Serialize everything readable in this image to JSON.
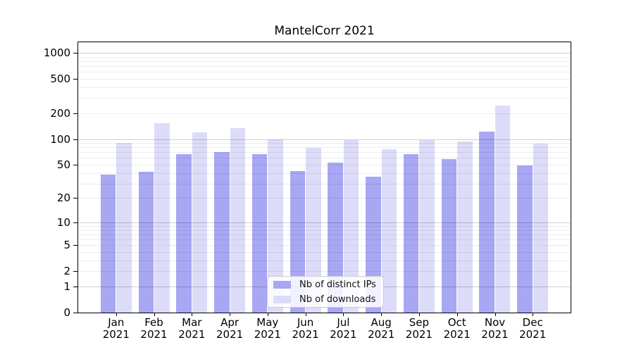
{
  "chart_data": {
    "type": "bar",
    "title": "MantelCorr 2021",
    "categories": [
      "Jan 2021",
      "Feb 2021",
      "Mar 2021",
      "Apr 2021",
      "May 2021",
      "Jun 2021",
      "Jul 2021",
      "Aug 2021",
      "Sep 2021",
      "Oct 2021",
      "Nov 2021",
      "Dec 2021"
    ],
    "series": [
      {
        "name": "Nb of distinct IPs",
        "color": "#a7a7f4",
        "values": [
          38,
          41,
          66,
          71,
          66,
          42,
          53,
          36,
          67,
          58,
          123,
          49
        ]
      },
      {
        "name": "Nb of downloads",
        "color": "#dcdcf9",
        "values": [
          91,
          153,
          120,
          135,
          100,
          79,
          98,
          76,
          98,
          93,
          244,
          89
        ]
      }
    ],
    "xlabel": "",
    "ylabel": "",
    "yscale": "symlog (log1p)",
    "yticks": [
      0,
      1,
      2,
      5,
      10,
      20,
      50,
      100,
      200,
      500,
      1000
    ],
    "ylim": [
      0,
      1300
    ],
    "grid": "horizontal major + minor log gridlines, drawn over bars",
    "legend_position": "inside lower-center"
  }
}
